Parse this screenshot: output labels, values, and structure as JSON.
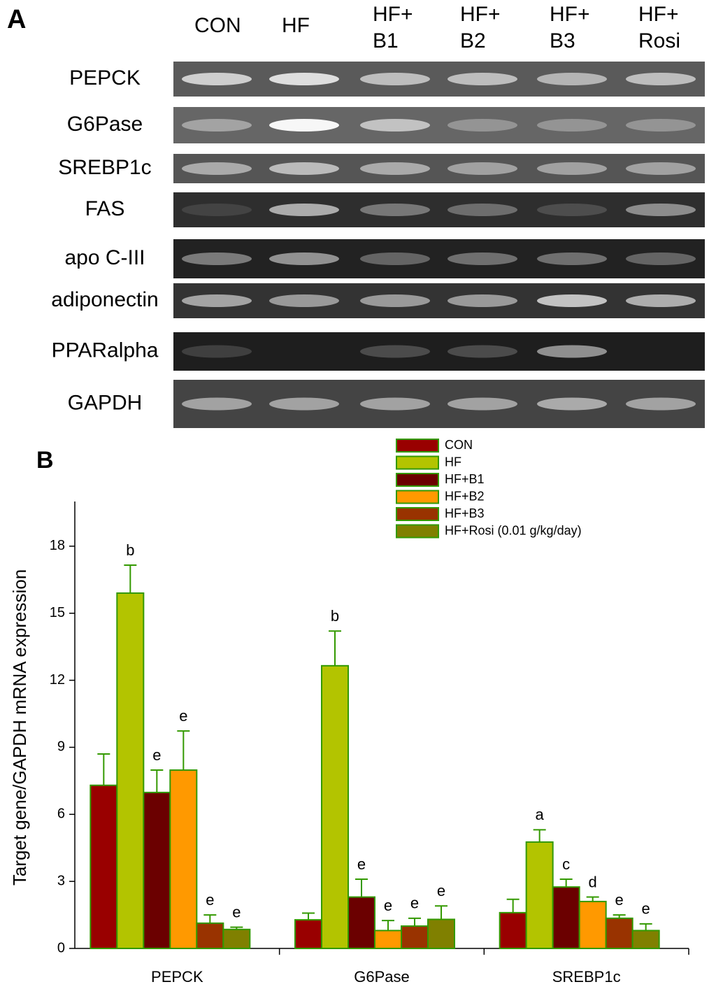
{
  "panel_a": {
    "label": "A",
    "lanes": [
      [
        "CON"
      ],
      [
        "HF"
      ],
      [
        "HF+",
        "B1"
      ],
      [
        "HF+",
        "B2"
      ],
      [
        "HF+",
        "B3"
      ],
      [
        "HF+",
        "Rosi"
      ]
    ],
    "genes": [
      "PEPCK",
      "G6Pase",
      "SREBP1c",
      "FAS",
      "apo C-III",
      "adiponectin",
      "PPARalpha",
      "GAPDH"
    ]
  },
  "chart_data": {
    "type": "bar",
    "panel_label": "B",
    "y_label": "Target gene/GAPDH mRNA expression",
    "categories": [
      "PEPCK",
      "G6Pase",
      "SREBP1c"
    ],
    "ylim": [
      0,
      20
    ],
    "yticks": [
      0,
      3,
      6,
      9,
      12,
      15,
      18
    ],
    "edge_color": "#339900",
    "series": [
      {
        "name": "CON",
        "color": "#990000",
        "values": [
          7.3,
          1.28,
          1.6
        ],
        "errors": [
          1.4,
          0.3,
          0.6
        ],
        "annotations": [
          null,
          null,
          null
        ]
      },
      {
        "name": "HF",
        "color": "#b3c400",
        "values": [
          15.9,
          12.65,
          4.76
        ],
        "errors": [
          1.25,
          1.55,
          0.55
        ],
        "annotations": [
          "b",
          "b",
          "a"
        ]
      },
      {
        "name": "HF+B1",
        "color": "#6b0000",
        "values": [
          6.98,
          2.3,
          2.75
        ],
        "errors": [
          1.0,
          0.8,
          0.35
        ],
        "annotations": [
          "e",
          "e",
          "c"
        ]
      },
      {
        "name": "HF+B2",
        "color": "#ff9900",
        "values": [
          7.98,
          0.8,
          2.1
        ],
        "errors": [
          1.75,
          0.45,
          0.2
        ],
        "annotations": [
          "e",
          "e",
          "d"
        ]
      },
      {
        "name": "HF+B3",
        "color": "#993300",
        "values": [
          1.13,
          1.0,
          1.35
        ],
        "errors": [
          0.37,
          0.35,
          0.15
        ],
        "annotations": [
          "e",
          "e",
          "e"
        ]
      },
      {
        "name": "HF+Rosi (0.01 g/kg/day)",
        "color": "#808000",
        "values": [
          0.85,
          1.3,
          0.8
        ],
        "errors": [
          0.1,
          0.6,
          0.3
        ],
        "annotations": [
          "e",
          "e",
          "e"
        ]
      }
    ]
  }
}
